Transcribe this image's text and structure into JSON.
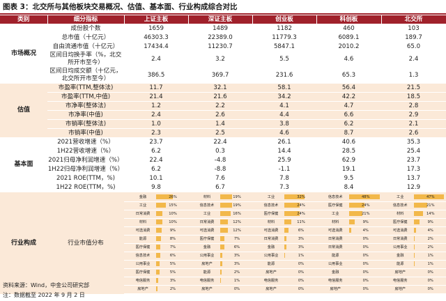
{
  "title": "图表 3：北交所与其他板块交易概况、估值、基本面、行业构成综合对比",
  "headers": [
    "类别",
    "细分指标",
    "上证主板",
    "深证主板",
    "创业板",
    "科创板",
    "北交所"
  ],
  "sections": [
    {
      "category": "市场概况",
      "rows": [
        {
          "label": "成份股个数",
          "values": [
            "1659",
            "1489",
            "1182",
            "460",
            "103"
          ]
        },
        {
          "label": "总市值（十亿元）",
          "values": [
            "46303.3",
            "22389.0",
            "11779.3",
            "6089.1",
            "189.7"
          ]
        },
        {
          "label": "自由流通市值（十亿元）",
          "values": [
            "17434.4",
            "11230.7",
            "5847.1",
            "2010.2",
            "65.0"
          ]
        },
        {
          "label": "区间日均换手率（%，北交所开市至今）",
          "values": [
            "2.4",
            "3.2",
            "5.5",
            "4.6",
            "2.4"
          ]
        },
        {
          "label": "区间日均成交额（十亿元，北交所开市至今）",
          "values": [
            "386.5",
            "369.7",
            "231.6",
            "65.3",
            "1.3"
          ]
        }
      ]
    },
    {
      "category": "估值",
      "rows": [
        {
          "label": "市盈率(TTM,整体法)",
          "values": [
            "11.7",
            "32.1",
            "58.1",
            "56.4",
            "21.5"
          ]
        },
        {
          "label": "市盈率(TTM,中值)",
          "values": [
            "21.4",
            "21.6",
            "34.2",
            "42.2",
            "18.5"
          ]
        },
        {
          "label": "市净率(整体法)",
          "values": [
            "1.2",
            "2.2",
            "4.1",
            "4.7",
            "2.8"
          ]
        },
        {
          "label": "市净率(中值)",
          "values": [
            "2.4",
            "2.6",
            "4.4",
            "6.6",
            "2.9"
          ]
        },
        {
          "label": "市销率(整体法)",
          "values": [
            "1.0",
            "1.4",
            "3.8",
            "6.2",
            "2.1"
          ]
        },
        {
          "label": "市销率(中值)",
          "values": [
            "2.3",
            "2.5",
            "4.6",
            "8.7",
            "2.6"
          ]
        }
      ]
    },
    {
      "category": "基本面",
      "rows": [
        {
          "label": "2021营收增速（%）",
          "values": [
            "23.7",
            "22.4",
            "26.1",
            "40.6",
            "35.3"
          ]
        },
        {
          "label": "1H22营收增速（%）",
          "values": [
            "6.2",
            "0.3",
            "14.4",
            "28.5",
            "25.4"
          ]
        },
        {
          "label": "2021归母净利润增速（%）",
          "values": [
            "22.4",
            "-4.8",
            "25.9",
            "62.9",
            "23.7"
          ]
        },
        {
          "label": "1H22归母净利润增速（%）",
          "values": [
            "6.2",
            "-8.8",
            "-1.1",
            "19.1",
            "17.3"
          ]
        },
        {
          "label": "2021 ROE(TTM，%)",
          "values": [
            "10.1",
            "7.6",
            "7.8",
            "9.5",
            "13.7"
          ]
        },
        {
          "label": "1H22 ROE(TTM，%)",
          "values": [
            "9.8",
            "6.7",
            "7.3",
            "8.4",
            "12.9"
          ]
        }
      ]
    }
  ],
  "industry": {
    "category": "行业构成",
    "label": "行业市值分布",
    "boards": [
      {
        "board": "上证主板",
        "items": [
          [
            "金融",
            "26%",
            26
          ],
          [
            "工业",
            "15%",
            15
          ],
          [
            "日常消费",
            "10%",
            10
          ],
          [
            "材料",
            "10%",
            10
          ],
          [
            "可选消费",
            "9%",
            9
          ],
          [
            "能源",
            "8%",
            8
          ],
          [
            "医疗保健",
            "7%",
            7
          ],
          [
            "信息技术",
            "6%",
            6
          ],
          [
            "公用事业",
            "5%",
            5
          ],
          [
            "医疗保健",
            "5%",
            5
          ],
          [
            "电信服务",
            "3%",
            3
          ],
          [
            "房地产",
            "2%",
            2
          ]
        ]
      },
      {
        "board": "深证主板",
        "items": [
          [
            "材料",
            "19%",
            19
          ],
          [
            "信息技术",
            "19%",
            19
          ],
          [
            "工业",
            "16%",
            16
          ],
          [
            "日常消费",
            "12%",
            12
          ],
          [
            "可选消费",
            "12%",
            12
          ],
          [
            "医疗保健",
            "7%",
            7
          ],
          [
            "金融",
            "6%",
            6
          ],
          [
            "公用事业",
            "3%",
            3
          ],
          [
            "房地产",
            "3%",
            3
          ],
          [
            "能源",
            "2%",
            2
          ],
          [
            "电信服务",
            "1%",
            1
          ],
          [
            "房地产",
            "0%",
            0
          ]
        ]
      },
      {
        "board": "创业板",
        "items": [
          [
            "工业",
            "32%",
            32
          ],
          [
            "信息技术",
            "24%",
            24
          ],
          [
            "医疗保健",
            "24%",
            24
          ],
          [
            "材料",
            "11%",
            11
          ],
          [
            "可选消费",
            "6%",
            6
          ],
          [
            "日常消费",
            "3%",
            3
          ],
          [
            "金融",
            "3%",
            3
          ],
          [
            "公用事业",
            "1%",
            1
          ],
          [
            "能源",
            "0%",
            0
          ],
          [
            "房地产",
            "0%",
            0
          ],
          [
            "电信服务",
            "0%",
            0
          ],
          [
            "房地产",
            "0%",
            0
          ]
        ]
      },
      {
        "board": "科创板",
        "items": [
          [
            "信息技术",
            "48%",
            48
          ],
          [
            "医疗保健",
            "24%",
            24
          ],
          [
            "工业",
            "21%",
            21
          ],
          [
            "材料",
            "9%",
            9
          ],
          [
            "可选消费",
            "4%",
            4
          ],
          [
            "日常消费",
            "0%",
            0
          ],
          [
            "日常消费",
            "0%",
            0
          ],
          [
            "能源",
            "0%",
            0
          ],
          [
            "公用事业",
            "0%",
            0
          ],
          [
            "金融",
            "0%",
            0
          ],
          [
            "电信服务",
            "0%",
            0
          ],
          [
            "房地产",
            "0%",
            0
          ]
        ]
      },
      {
        "board": "北交所",
        "items": [
          [
            "工业",
            "47%",
            47
          ],
          [
            "信息技术",
            "21%",
            21
          ],
          [
            "材料",
            "14%",
            14
          ],
          [
            "医疗保健",
            "9%",
            9
          ],
          [
            "可选消费",
            "4%",
            4
          ],
          [
            "日常消费",
            "2%",
            2
          ],
          [
            "公用事业",
            "2%",
            2
          ],
          [
            "金融",
            "1%",
            1
          ],
          [
            "能源",
            "1%",
            1
          ],
          [
            "房地产",
            "0%",
            0
          ],
          [
            "电信服务",
            "0%",
            0
          ],
          [
            "房地产",
            "0%",
            0
          ]
        ]
      }
    ]
  },
  "footnotes": [
    "资料来源：Wind，中金公司研究部",
    "注：数据截至 2022 年 9 月 2 日"
  ],
  "colors": {
    "header": "#a0212b",
    "band": "#fbe9d8",
    "bar": "#f2b84a"
  }
}
